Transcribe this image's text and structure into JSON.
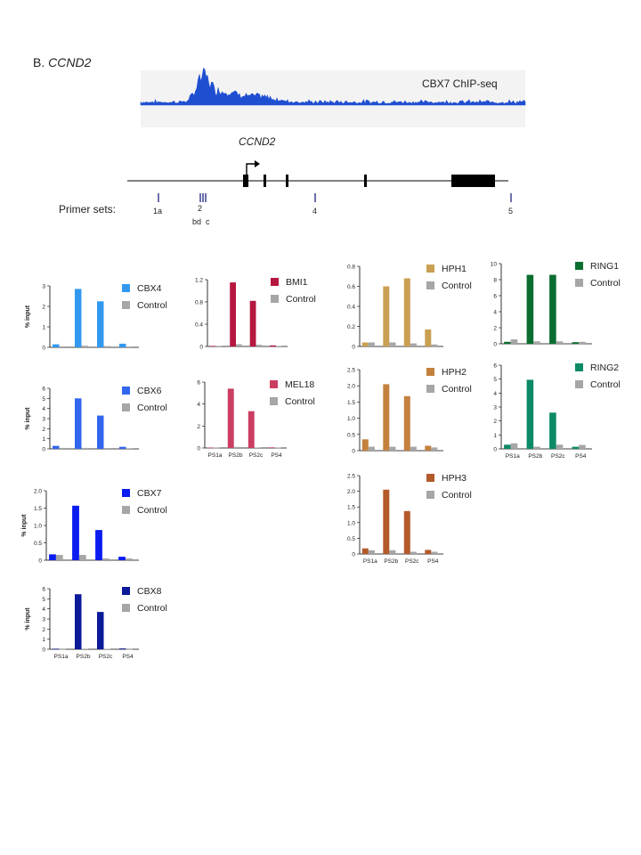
{
  "figure": {
    "panel_letter": "B.",
    "panel_gene": "CCND2"
  },
  "track": {
    "label": "CBX7 ChIP-seq",
    "color": "#1f4fd1"
  },
  "gene_model": {
    "gene_label": "CCND2",
    "primer_label": "Primer sets:",
    "primers": [
      {
        "label": "1a"
      },
      {
        "label": "2"
      },
      {
        "label": "4"
      },
      {
        "label": "5"
      }
    ],
    "sublabels": "bd  c"
  },
  "chart_data": [
    {
      "type": "bar",
      "name": "cbx4",
      "categories": [
        "PS1a",
        "PS2b",
        "PS2c",
        "PS4"
      ],
      "show_xlabels": false,
      "ylabel": "% input",
      "ylim": [
        0,
        3
      ],
      "yticks": [
        "0",
        "1",
        "2",
        "3"
      ],
      "series": [
        {
          "name": "CBX4",
          "color": "#3399f0",
          "values": [
            0.15,
            2.85,
            2.25,
            0.18
          ]
        },
        {
          "name": "Control",
          "color": "#a6a6a6",
          "values": [
            0.05,
            0.08,
            0.06,
            0.04
          ]
        }
      ]
    },
    {
      "type": "bar",
      "name": "cbx6",
      "categories": [
        "PS1a",
        "PS2b",
        "PS2c",
        "PS4"
      ],
      "show_xlabels": false,
      "ylabel": "% input",
      "ylim": [
        0,
        6
      ],
      "yticks": [
        "0",
        "1",
        "2",
        "3",
        "4",
        "5",
        "6"
      ],
      "series": [
        {
          "name": "CBX6",
          "color": "#3366ee",
          "values": [
            0.3,
            5.0,
            3.3,
            0.2
          ]
        },
        {
          "name": "Control",
          "color": "#a6a6a6",
          "values": [
            0.1,
            0.1,
            0.08,
            0.06
          ]
        }
      ]
    },
    {
      "type": "bar",
      "name": "cbx7",
      "categories": [
        "PS1a",
        "PS2b",
        "PS2c",
        "PS4"
      ],
      "show_xlabels": false,
      "ylabel": "% input",
      "ylim": [
        0,
        2
      ],
      "yticks": [
        "0",
        "0.5",
        "1.0",
        "1.5",
        "2.0"
      ],
      "series": [
        {
          "name": "CBX7",
          "color": "#0a1cf0",
          "values": [
            0.17,
            1.57,
            0.87,
            0.1
          ]
        },
        {
          "name": "Control",
          "color": "#a6a6a6",
          "values": [
            0.15,
            0.15,
            0.05,
            0.05
          ]
        }
      ]
    },
    {
      "type": "bar",
      "name": "cbx8",
      "categories": [
        "PS1a",
        "PS2b",
        "PS2c",
        "PS4"
      ],
      "show_xlabels": true,
      "ylabel": "% input",
      "ylim": [
        0,
        6
      ],
      "yticks": [
        "0",
        "1",
        "2",
        "3",
        "4",
        "5",
        "6"
      ],
      "series": [
        {
          "name": "CBX8",
          "color": "#0a1a99",
          "values": [
            0.05,
            5.45,
            3.7,
            0.08
          ]
        },
        {
          "name": "Control",
          "color": "#a6a6a6",
          "values": [
            0.03,
            0.05,
            0.04,
            0.03
          ]
        }
      ]
    },
    {
      "type": "bar",
      "name": "bmi1",
      "categories": [
        "PS1a",
        "PS2b",
        "PS2c",
        "PS4"
      ],
      "show_xlabels": false,
      "ylabel": "",
      "ylim": [
        0,
        1.2
      ],
      "yticks": [
        "0",
        "0.4",
        "0.8",
        "1.2"
      ],
      "series": [
        {
          "name": "BMI1",
          "color": "#b5173f",
          "values": [
            0.01,
            1.15,
            0.82,
            0.02
          ]
        },
        {
          "name": "Control",
          "color": "#a6a6a6",
          "values": [
            0.01,
            0.04,
            0.03,
            0.01
          ]
        }
      ]
    },
    {
      "type": "bar",
      "name": "mel18",
      "categories": [
        "PS1a",
        "PS2b",
        "PS2c",
        "PS4"
      ],
      "show_xlabels": true,
      "ylabel": "",
      "ylim": [
        0,
        6
      ],
      "yticks": [
        "0",
        "2",
        "4",
        "6"
      ],
      "series": [
        {
          "name": "MEL18",
          "color": "#cc3d62",
          "values": [
            0.03,
            5.4,
            3.35,
            0.06
          ]
        },
        {
          "name": "Control",
          "color": "#a6a6a6",
          "values": [
            0.03,
            0.1,
            0.05,
            0.03
          ]
        }
      ]
    },
    {
      "type": "bar",
      "name": "hph1",
      "categories": [
        "PS1a",
        "PS2b",
        "PS2c",
        "PS4"
      ],
      "show_xlabels": false,
      "ylabel": "",
      "ylim": [
        0,
        0.8
      ],
      "yticks": [
        "0",
        "0.2",
        "0.4",
        "0.6",
        "0.8"
      ],
      "series": [
        {
          "name": "HPH1",
          "color": "#c9a052",
          "values": [
            0.04,
            0.6,
            0.68,
            0.17
          ]
        },
        {
          "name": "Control",
          "color": "#a6a6a6",
          "values": [
            0.04,
            0.04,
            0.03,
            0.02
          ]
        }
      ]
    },
    {
      "type": "bar",
      "name": "hph2",
      "categories": [
        "PS1a",
        "PS2b",
        "PS2c",
        "PS4"
      ],
      "show_xlabels": false,
      "ylabel": "",
      "ylim": [
        0,
        2.5
      ],
      "yticks": [
        "0",
        "0.5",
        "1.0",
        "1.5",
        "2.0",
        "2.5"
      ],
      "series": [
        {
          "name": "HPH2",
          "color": "#c4813e",
          "values": [
            0.35,
            2.05,
            1.68,
            0.15
          ]
        },
        {
          "name": "Control",
          "color": "#a6a6a6",
          "values": [
            0.12,
            0.12,
            0.12,
            0.1
          ]
        }
      ]
    },
    {
      "type": "bar",
      "name": "hph3",
      "categories": [
        "PS1a",
        "PS2b",
        "PS2c",
        "PS4"
      ],
      "show_xlabels": true,
      "ylabel": "",
      "ylim": [
        0,
        2.5
      ],
      "yticks": [
        "0",
        "0.5",
        "1.0",
        "1.5",
        "2.0",
        "2.5"
      ],
      "series": [
        {
          "name": "HPH3",
          "color": "#b35a2a",
          "values": [
            0.18,
            2.05,
            1.37,
            0.13
          ]
        },
        {
          "name": "Control",
          "color": "#a6a6a6",
          "values": [
            0.12,
            0.12,
            0.07,
            0.07
          ]
        }
      ]
    },
    {
      "type": "bar",
      "name": "ring1",
      "categories": [
        "PS1a",
        "PS2b",
        "PS2c",
        "PS4"
      ],
      "show_xlabels": false,
      "ylabel": "",
      "ylim": [
        0,
        10
      ],
      "yticks": [
        "0",
        "2",
        "4",
        "6",
        "8",
        "10"
      ],
      "series": [
        {
          "name": "RING1",
          "color": "#0a6e30",
          "values": [
            0.25,
            8.6,
            8.6,
            0.2
          ]
        },
        {
          "name": "Control",
          "color": "#a6a6a6",
          "values": [
            0.55,
            0.3,
            0.3,
            0.25
          ]
        }
      ]
    },
    {
      "type": "bar",
      "name": "ring2",
      "categories": [
        "PS1a",
        "PS2b",
        "PS2c",
        "PS4"
      ],
      "show_xlabels": true,
      "ylabel": "",
      "ylim": [
        0,
        6
      ],
      "yticks": [
        "0",
        "1",
        "2",
        "3",
        "4",
        "5",
        "6"
      ],
      "series": [
        {
          "name": "RING2",
          "color": "#0d8a67",
          "values": [
            0.3,
            4.95,
            2.6,
            0.15
          ]
        },
        {
          "name": "Control",
          "color": "#a6a6a6",
          "values": [
            0.4,
            0.15,
            0.3,
            0.28
          ]
        }
      ]
    }
  ]
}
